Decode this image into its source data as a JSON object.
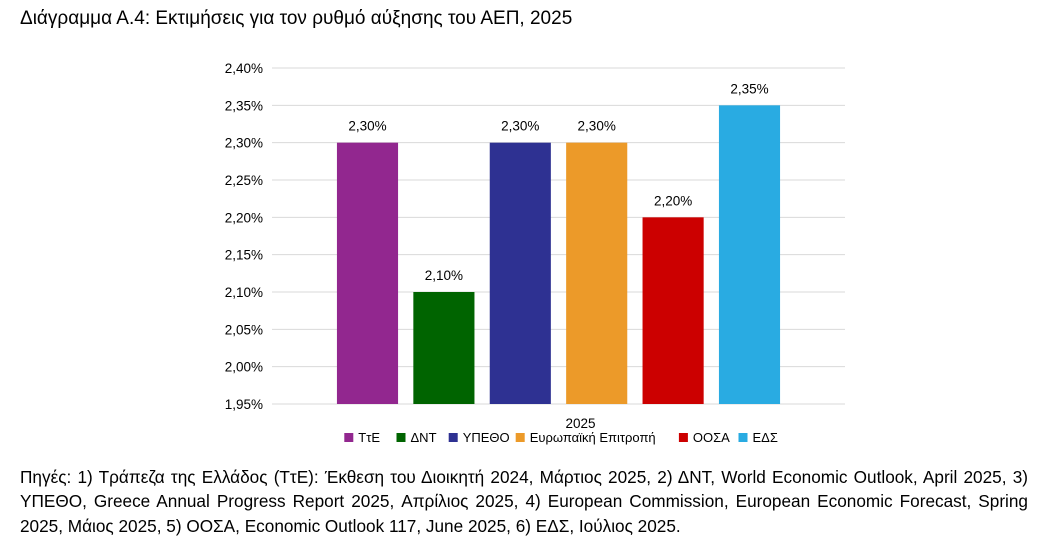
{
  "title": "Διάγραμμα Α.4: Εκτιμήσεις για τον ρυθμό αύξησης του ΑΕΠ, 2025",
  "source_text": "Πηγές: 1) Τράπεζα της Ελλάδος (ΤτΕ): Έκθεση του Διοικητή 2024, Μάρτιος 2025, 2) ΔΝΤ, World Economic Outlook, April 2025, 3) ΥΠΕΘΟ, Greece Annual Progress Report 2025, Απρίλιος 2025, 4) European Commission, European Economic Forecast, Spring 2025, Μάιος 2025, 5) ΟΟΣΑ, Economic Outlook 117, June 2025, 6) ΕΔΣ, Ιούλιος 2025.",
  "chart_data": {
    "type": "bar",
    "categories": [
      "2025"
    ],
    "series": [
      {
        "name": "ΤτΕ",
        "values": [
          2.3
        ],
        "label": "2,30%",
        "color": "#92278f"
      },
      {
        "name": "ΔΝΤ",
        "values": [
          2.1
        ],
        "label": "2,10%",
        "color": "#006400"
      },
      {
        "name": "ΥΠΕΘΟ",
        "values": [
          2.3
        ],
        "label": "2,30%",
        "color": "#2e3192"
      },
      {
        "name": "Ευρωπαϊκή Επιτροπή",
        "values": [
          2.3
        ],
        "label": "2,30%",
        "color": "#ec9a29"
      },
      {
        "name": "ΟΟΣΑ",
        "values": [
          2.2
        ],
        "label": "2,20%",
        "color": "#cc0000"
      },
      {
        "name": "ΕΔΣ",
        "values": [
          2.35
        ],
        "label": "2,35%",
        "color": "#29abe2"
      }
    ],
    "ylim": [
      1.95,
      2.4
    ],
    "yticks": [
      1.95,
      2.0,
      2.05,
      2.1,
      2.15,
      2.2,
      2.25,
      2.3,
      2.35,
      2.4
    ],
    "ytick_labels": [
      "1,95%",
      "2,00%",
      "2,05%",
      "2,10%",
      "2,15%",
      "2,20%",
      "2,25%",
      "2,30%",
      "2,35%",
      "2,40%"
    ],
    "xlabel": "",
    "ylabel": "",
    "grid": true,
    "legend": "bottom"
  }
}
